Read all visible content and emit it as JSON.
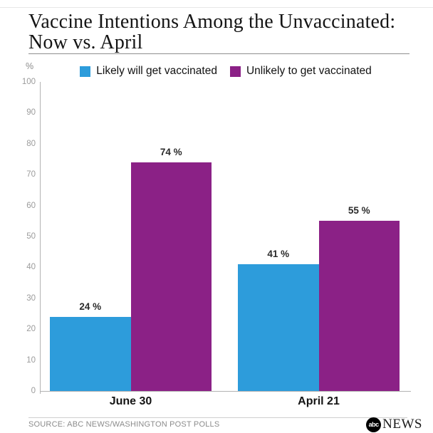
{
  "page": {
    "title_line1": "Vaccine Intentions Among the Unvaccinated:",
    "title_line2": "Now vs. April"
  },
  "footer": {
    "source": "SOURCE: ABC NEWS/WASHINGTON POST POLLS",
    "logo_abc": "abc",
    "logo_news": "NEWS"
  },
  "colors": {
    "blue": "#2D9CDB",
    "purple": "#8B2186",
    "axis": "#b3b3b3",
    "tick_label": "#9b9b9b"
  },
  "chart_data": {
    "type": "bar",
    "title": "Vaccine Intentions Among the Unvaccinated: Now vs. April",
    "ylabel": "%",
    "ylim": [
      0,
      100
    ],
    "yticks": [
      0,
      10,
      20,
      30,
      40,
      50,
      60,
      70,
      80,
      90,
      100
    ],
    "categories": [
      "June 30",
      "April 21"
    ],
    "series": [
      {
        "name": "Likely will get vaccinated",
        "color": "#2D9CDB",
        "values": [
          24,
          41
        ]
      },
      {
        "name": "Unlikely to get vaccinated",
        "color": "#8B2186",
        "values": [
          74,
          55
        ]
      }
    ],
    "value_suffix": " %",
    "legend_position": "top",
    "grid": false
  }
}
